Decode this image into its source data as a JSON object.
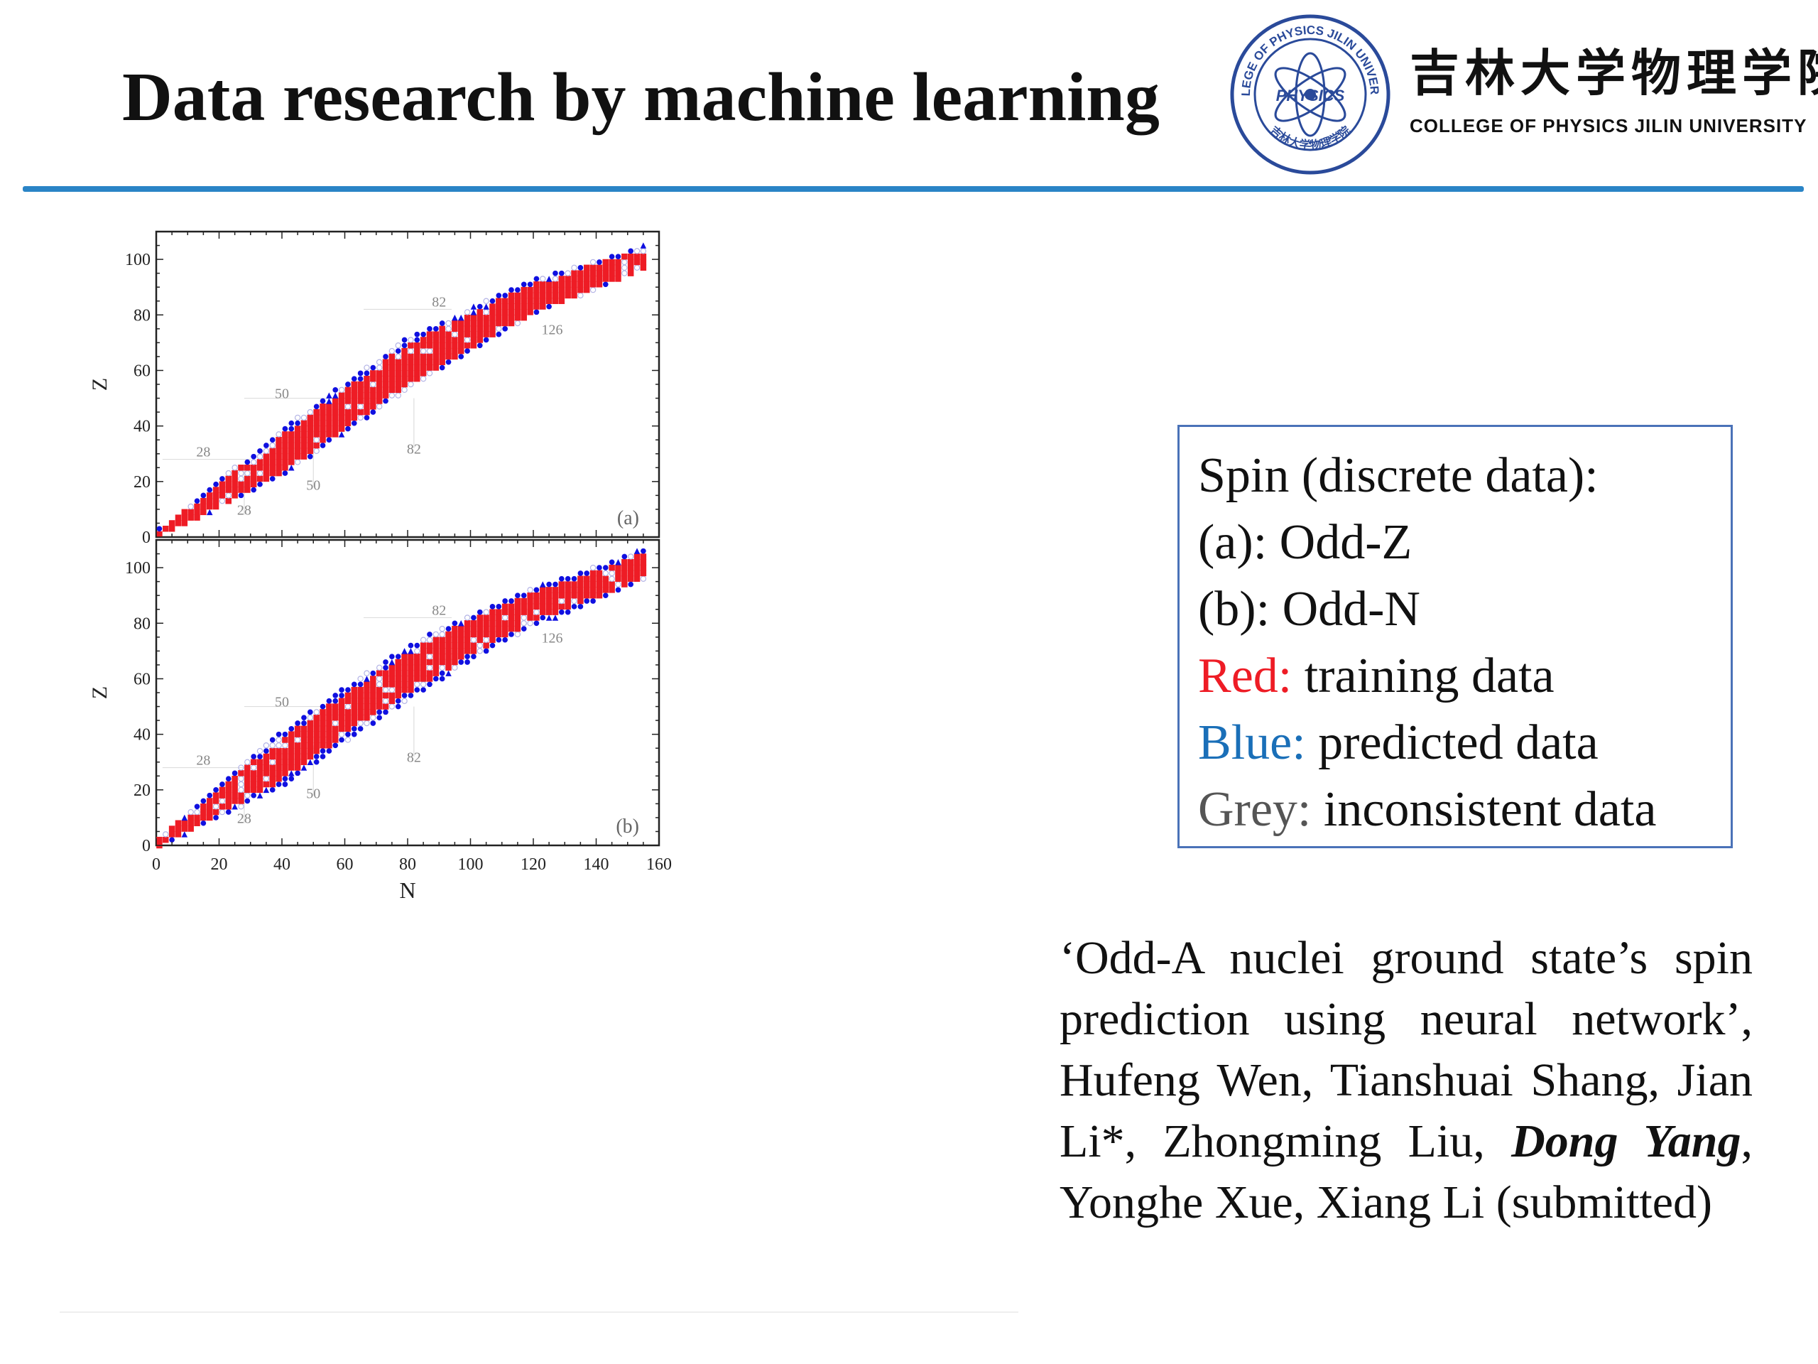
{
  "slide": {
    "title": "Data research by machine learning",
    "logo": {
      "ring_text": "COLLEGE OF PHYSICS JILIN UNIVERSITY",
      "center_text": "PHYSICS",
      "bottom_text": "吉林大学物理学院",
      "cn_name": "吉林大学物理学院",
      "en_name": "COLLEGE OF PHYSICS JILIN UNIVERSITY"
    }
  },
  "legend": {
    "line1": "Spin (discrete data):",
    "line2": "(a): Odd-Z",
    "line3": "(b): Odd-N",
    "red_label": "Red:",
    "red_text": " training data",
    "blue_label": "Blue:",
    "blue_text": " predicted data",
    "grey_label": "Grey:",
    "grey_text": " inconsistent data"
  },
  "citation": {
    "part1": "‘Odd-A nuclei ground state’s spin prediction using neural network’, Hufeng Wen, Tianshuai Shang, Jian Li*, Zhongming Liu, ",
    "highlight": "Dong Yang",
    "part2": ", Yonghe Xue, Xiang Li (submitted)"
  },
  "colors": {
    "training": "#ee1c25",
    "predicted": "#1010e0",
    "inconsistent": "#b4b4e6",
    "accent": "#2a84c6"
  },
  "chart_data": [
    {
      "type": "scatter",
      "panel_label": "(a)",
      "xlabel": "",
      "ylabel": "Z",
      "xlim": [
        0,
        160
      ],
      "ylim": [
        0,
        110
      ],
      "xticks": [],
      "yticks": [
        0,
        20,
        40,
        60,
        80,
        100
      ],
      "magic_labels": [
        {
          "text": "28",
          "x": 15,
          "y": 29
        },
        {
          "text": "28",
          "x": 28,
          "y": 8
        },
        {
          "text": "50",
          "x": 40,
          "y": 50
        },
        {
          "text": "50",
          "x": 50,
          "y": 17
        },
        {
          "text": "82",
          "x": 90,
          "y": 83
        },
        {
          "text": "82",
          "x": 82,
          "y": 30
        },
        {
          "text": "126",
          "x": 126,
          "y": 73
        }
      ],
      "band": {
        "ridge": [
          [
            1,
            1
          ],
          [
            20,
            15
          ],
          [
            40,
            30
          ],
          [
            60,
            46
          ],
          [
            80,
            62
          ],
          [
            100,
            74
          ],
          [
            120,
            86
          ],
          [
            140,
            94
          ],
          [
            155,
            100
          ]
        ],
        "half_width": [
          [
            1,
            2
          ],
          [
            40,
            9
          ],
          [
            80,
            10
          ],
          [
            120,
            7
          ],
          [
            155,
            5
          ]
        ],
        "red_inner": 0.72,
        "predicted_marks": [
          "circle",
          "triangle"
        ]
      },
      "series": [
        {
          "name": "Red: training data",
          "color": "#ee1c25"
        },
        {
          "name": "Blue: predicted data",
          "color": "#1010e0"
        },
        {
          "name": "Grey: inconsistent data",
          "color": "#b4b4e6"
        }
      ]
    },
    {
      "type": "scatter",
      "panel_label": "(b)",
      "xlabel": "N",
      "ylabel": "Z",
      "xlim": [
        0,
        160
      ],
      "ylim": [
        0,
        110
      ],
      "xticks": [
        0,
        20,
        40,
        60,
        80,
        100,
        120,
        140,
        160
      ],
      "yticks": [
        0,
        20,
        40,
        60,
        80,
        100
      ],
      "magic_labels": [
        {
          "text": "28",
          "x": 15,
          "y": 29
        },
        {
          "text": "28",
          "x": 28,
          "y": 8
        },
        {
          "text": "50",
          "x": 40,
          "y": 50
        },
        {
          "text": "50",
          "x": 50,
          "y": 17
        },
        {
          "text": "82",
          "x": 90,
          "y": 83
        },
        {
          "text": "82",
          "x": 82,
          "y": 30
        },
        {
          "text": "126",
          "x": 126,
          "y": 73
        }
      ],
      "band": {
        "ridge": [
          [
            1,
            1
          ],
          [
            20,
            16
          ],
          [
            40,
            31
          ],
          [
            60,
            47
          ],
          [
            80,
            62
          ],
          [
            100,
            75
          ],
          [
            120,
            86
          ],
          [
            140,
            94
          ],
          [
            155,
            101
          ]
        ],
        "half_width": [
          [
            1,
            2
          ],
          [
            40,
            10
          ],
          [
            80,
            10
          ],
          [
            120,
            7
          ],
          [
            155,
            6
          ]
        ],
        "red_inner": 0.72,
        "predicted_marks": [
          "circle",
          "triangle"
        ]
      },
      "series": [
        {
          "name": "Red: training data",
          "color": "#ee1c25"
        },
        {
          "name": "Blue: predicted data",
          "color": "#1010e0"
        },
        {
          "name": "Grey: inconsistent data",
          "color": "#b4b4e6"
        }
      ]
    }
  ]
}
